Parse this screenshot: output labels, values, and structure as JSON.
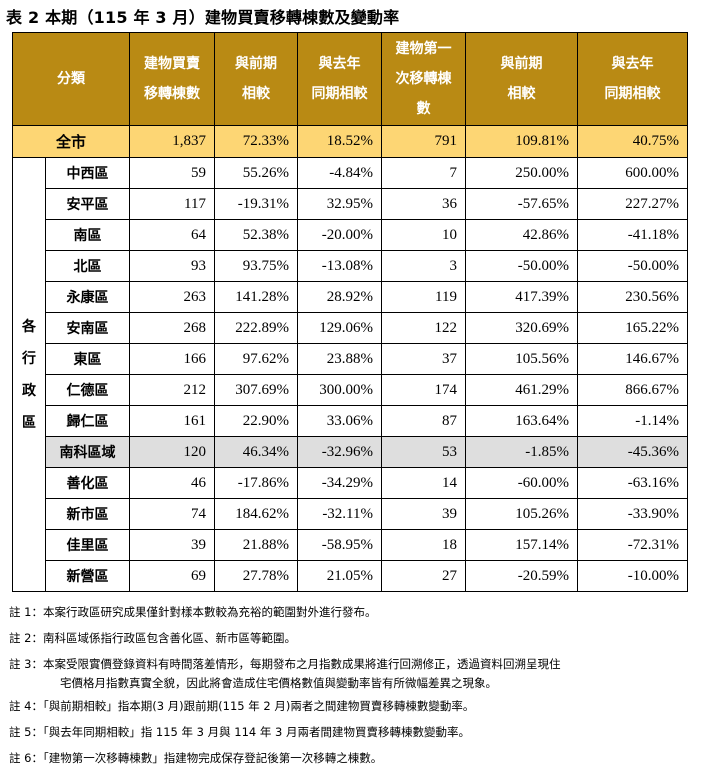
{
  "title": "表 2 本期（115 年 3 月）建物買賣移轉棟數及變動率",
  "headers": {
    "category": "分類",
    "h1": [
      "建物買賣",
      "移轉棟數"
    ],
    "h2": [
      "與前期",
      "相較"
    ],
    "h3": [
      "與去年",
      "同期相較"
    ],
    "h4": [
      "建物第一",
      "次移轉棟",
      "數"
    ],
    "h5": [
      "與前期",
      "相較"
    ],
    "h6": [
      "與去年",
      "同期相較"
    ]
  },
  "total": {
    "label": "全市",
    "values": [
      "1,837",
      "72.33%",
      "18.52%",
      "791",
      "109.81%",
      "40.75%"
    ]
  },
  "group_label": [
    "各",
    "行",
    "政",
    "區"
  ],
  "rows": [
    {
      "name": "中西區",
      "values": [
        "59",
        "55.26%",
        "-4.84%",
        "7",
        "250.00%",
        "600.00%"
      ]
    },
    {
      "name": "安平區",
      "values": [
        "117",
        "-19.31%",
        "32.95%",
        "36",
        "-57.65%",
        "227.27%"
      ]
    },
    {
      "name": "南區",
      "values": [
        "64",
        "52.38%",
        "-20.00%",
        "10",
        "42.86%",
        "-41.18%"
      ]
    },
    {
      "name": "北區",
      "values": [
        "93",
        "93.75%",
        "-13.08%",
        "3",
        "-50.00%",
        "-50.00%"
      ]
    },
    {
      "name": "永康區",
      "values": [
        "263",
        "141.28%",
        "28.92%",
        "119",
        "417.39%",
        "230.56%"
      ]
    },
    {
      "name": "安南區",
      "values": [
        "268",
        "222.89%",
        "129.06%",
        "122",
        "320.69%",
        "165.22%"
      ]
    },
    {
      "name": "東區",
      "values": [
        "166",
        "97.62%",
        "23.88%",
        "37",
        "105.56%",
        "146.67%"
      ]
    },
    {
      "name": "仁德區",
      "values": [
        "212",
        "307.69%",
        "300.00%",
        "174",
        "461.29%",
        "866.67%"
      ]
    },
    {
      "name": "歸仁區",
      "values": [
        "161",
        "22.90%",
        "33.06%",
        "87",
        "163.64%",
        "-1.14%"
      ]
    },
    {
      "name": "南科區域",
      "values": [
        "120",
        "46.34%",
        "-32.96%",
        "53",
        "-1.85%",
        "-45.36%"
      ]
    },
    {
      "name": "善化區",
      "values": [
        "46",
        "-17.86%",
        "-34.29%",
        "14",
        "-60.00%",
        "-63.16%"
      ]
    },
    {
      "name": "新市區",
      "values": [
        "74",
        "184.62%",
        "-32.11%",
        "39",
        "105.26%",
        "-33.90%"
      ]
    },
    {
      "name": "佳里區",
      "values": [
        "39",
        "21.88%",
        "-58.95%",
        "18",
        "157.14%",
        "-72.31%"
      ]
    },
    {
      "name": "新營區",
      "values": [
        "69",
        "27.78%",
        "21.05%",
        "27",
        "-20.59%",
        "-10.00%"
      ]
    }
  ],
  "notes": [
    "註 1：本案行政區研究成果僅針對樣本數較為充裕的範圍對外進行發布。",
    "註 2：南科區域係指行政區包含善化區、新市區等範圍。",
    "註 3：本案受限實價登錄資料有時間落差情形，每期發布之月指數成果將進行回溯修正，透過資料回溯呈現住",
    "宅價格月指數真實全貌，因此將會造成住宅價格數值與變動率皆有所微幅差異之現象。",
    "註 4：「與前期相較」指本期(3 月)跟前期(115 年 2 月)兩者之間建物買賣移轉棟數變動率。",
    "註 5：「與去年同期相較」指 115 年 3 月與 114 年 3 月兩者間建物買賣移轉棟數變動率。",
    "註 6：「建物第一次移轉棟數」指建物完成保存登記後第一次移轉之棟數。"
  ]
}
